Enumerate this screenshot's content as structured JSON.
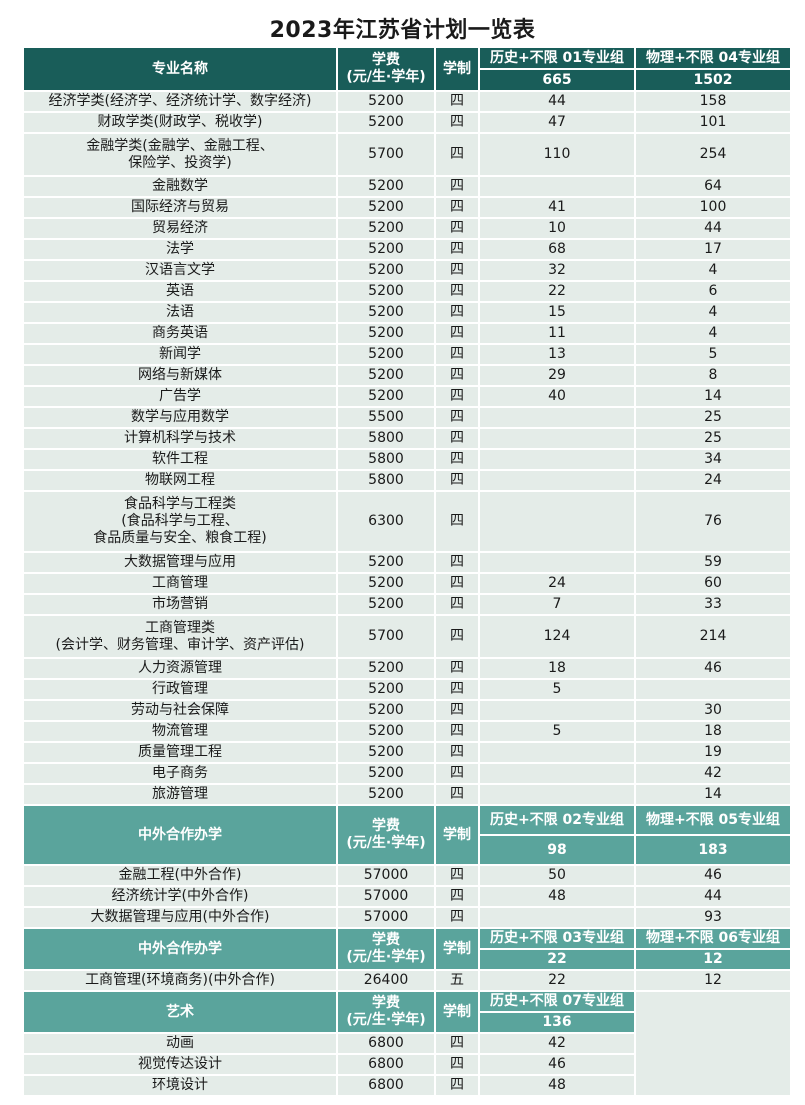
{
  "title": "2023年江苏省计划一览表",
  "colors": {
    "header_dark": "#195d59",
    "header_light": "#5aa49c",
    "row_bg": "#e4ece8",
    "text_white": "#ffffff"
  },
  "sections": [
    {
      "header": {
        "name": "专业名称",
        "fee": "学费\n(元/生·学年)",
        "duration": "学制",
        "group_a": "历史+不限 01专业组",
        "count_a": "665",
        "group_b": "物理+不限 04专业组",
        "count_b": "1502"
      },
      "rows": [
        {
          "name": "经济学类(经济学、经济统计学、数字经济)",
          "fee": "5200",
          "duration": "四",
          "a": "44",
          "b": "158"
        },
        {
          "name": "财政学类(财政学、税收学)",
          "fee": "5200",
          "duration": "四",
          "a": "47",
          "b": "101"
        },
        {
          "name": "金融学类(金融学、金融工程、\n保险学、投资学)",
          "fee": "5700",
          "duration": "四",
          "a": "110",
          "b": "254"
        },
        {
          "name": "金融数学",
          "fee": "5200",
          "duration": "四",
          "a": "",
          "b": "64"
        },
        {
          "name": "国际经济与贸易",
          "fee": "5200",
          "duration": "四",
          "a": "41",
          "b": "100"
        },
        {
          "name": "贸易经济",
          "fee": "5200",
          "duration": "四",
          "a": "10",
          "b": "44"
        },
        {
          "name": "法学",
          "fee": "5200",
          "duration": "四",
          "a": "68",
          "b": "17"
        },
        {
          "name": "汉语言文学",
          "fee": "5200",
          "duration": "四",
          "a": "32",
          "b": "4"
        },
        {
          "name": "英语",
          "fee": "5200",
          "duration": "四",
          "a": "22",
          "b": "6"
        },
        {
          "name": "法语",
          "fee": "5200",
          "duration": "四",
          "a": "15",
          "b": "4"
        },
        {
          "name": "商务英语",
          "fee": "5200",
          "duration": "四",
          "a": "11",
          "b": "4"
        },
        {
          "name": "新闻学",
          "fee": "5200",
          "duration": "四",
          "a": "13",
          "b": "5"
        },
        {
          "name": "网络与新媒体",
          "fee": "5200",
          "duration": "四",
          "a": "29",
          "b": "8"
        },
        {
          "name": "广告学",
          "fee": "5200",
          "duration": "四",
          "a": "40",
          "b": "14"
        },
        {
          "name": "数学与应用数学",
          "fee": "5500",
          "duration": "四",
          "a": "",
          "b": "25"
        },
        {
          "name": "计算机科学与技术",
          "fee": "5800",
          "duration": "四",
          "a": "",
          "b": "25"
        },
        {
          "name": "软件工程",
          "fee": "5800",
          "duration": "四",
          "a": "",
          "b": "34"
        },
        {
          "name": "物联网工程",
          "fee": "5800",
          "duration": "四",
          "a": "",
          "b": "24"
        },
        {
          "name": "食品科学与工程类\n(食品科学与工程、\n食品质量与安全、粮食工程)",
          "fee": "6300",
          "duration": "四",
          "a": "",
          "b": "76"
        },
        {
          "name": "大数据管理与应用",
          "fee": "5200",
          "duration": "四",
          "a": "",
          "b": "59"
        },
        {
          "name": "工商管理",
          "fee": "5200",
          "duration": "四",
          "a": "24",
          "b": "60"
        },
        {
          "name": "市场营销",
          "fee": "5200",
          "duration": "四",
          "a": "7",
          "b": "33"
        },
        {
          "name": "工商管理类\n(会计学、财务管理、审计学、资产评估)",
          "fee": "5700",
          "duration": "四",
          "a": "124",
          "b": "214"
        },
        {
          "name": "人力资源管理",
          "fee": "5200",
          "duration": "四",
          "a": "18",
          "b": "46"
        },
        {
          "name": "行政管理",
          "fee": "5200",
          "duration": "四",
          "a": "5",
          "b": ""
        },
        {
          "name": "劳动与社会保障",
          "fee": "5200",
          "duration": "四",
          "a": "",
          "b": "30"
        },
        {
          "name": "物流管理",
          "fee": "5200",
          "duration": "四",
          "a": "5",
          "b": "18"
        },
        {
          "name": "质量管理工程",
          "fee": "5200",
          "duration": "四",
          "a": "",
          "b": "19"
        },
        {
          "name": "电子商务",
          "fee": "5200",
          "duration": "四",
          "a": "",
          "b": "42"
        },
        {
          "name": "旅游管理",
          "fee": "5200",
          "duration": "四",
          "a": "",
          "b": "14"
        }
      ]
    },
    {
      "header": {
        "name": "中外合作办学",
        "fee": "学费\n(元/生·学年)",
        "duration": "学制",
        "group_a": "历史+不限 02专业组",
        "count_a": "98",
        "group_b": "物理+不限 05专业组",
        "count_b": "183"
      },
      "rows": [
        {
          "name": "金融工程(中外合作)",
          "fee": "57000",
          "duration": "四",
          "a": "50",
          "b": "46"
        },
        {
          "name": "经济统计学(中外合作)",
          "fee": "57000",
          "duration": "四",
          "a": "48",
          "b": "44"
        },
        {
          "name": "大数据管理与应用(中外合作)",
          "fee": "57000",
          "duration": "四",
          "a": "",
          "b": "93"
        }
      ]
    },
    {
      "header": {
        "name": "中外合作办学",
        "fee": "学费\n(元/生·学年)",
        "duration": "学制",
        "group_a": "历史+不限 03专业组",
        "count_a": "22",
        "group_b": "物理+不限 06专业组",
        "count_b": "12"
      },
      "rows": [
        {
          "name": "工商管理(环境商务)(中外合作)",
          "fee": "26400",
          "duration": "五",
          "a": "22",
          "b": "12"
        }
      ]
    },
    {
      "header": {
        "name": "艺术",
        "fee": "学费\n(元/生·学年)",
        "duration": "学制",
        "group_a": "历史+不限 07专业组",
        "count_a": "136",
        "group_b": null,
        "count_b": null
      },
      "rows": [
        {
          "name": "动画",
          "fee": "6800",
          "duration": "四",
          "a": "42",
          "b": null
        },
        {
          "name": "视觉传达设计",
          "fee": "6800",
          "duration": "四",
          "a": "46",
          "b": null
        },
        {
          "name": "环境设计",
          "fee": "6800",
          "duration": "四",
          "a": "48",
          "b": null
        }
      ]
    }
  ]
}
